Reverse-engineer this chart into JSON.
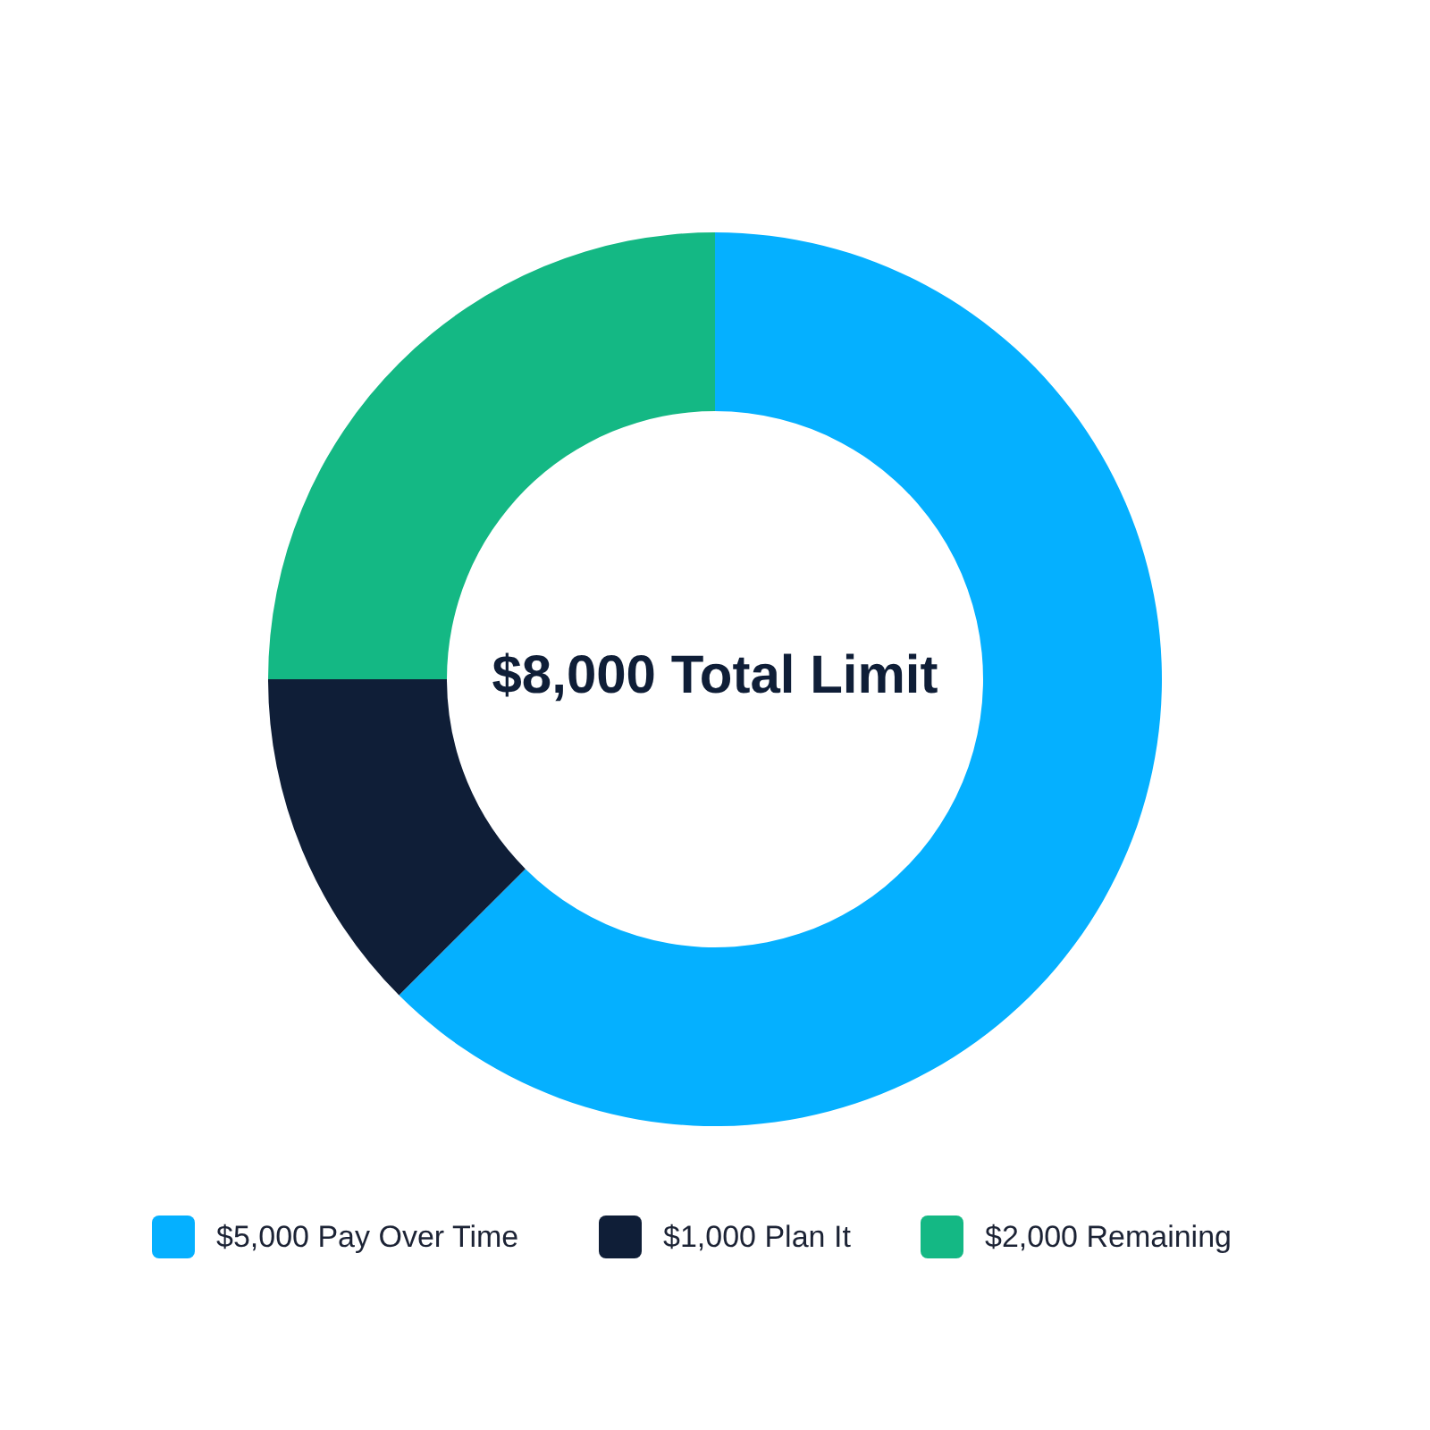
{
  "chart_data": {
    "type": "donut",
    "title": "$8,000 Total Limit",
    "categories": [
      "$5,000 Pay Over Time",
      "$1,000 Plan It",
      "$2,000 Remaining"
    ],
    "values": [
      5000,
      1000,
      2000
    ],
    "colors": [
      "#05b0ff",
      "#0f1e37",
      "#14b884"
    ],
    "legend": "bottom"
  }
}
